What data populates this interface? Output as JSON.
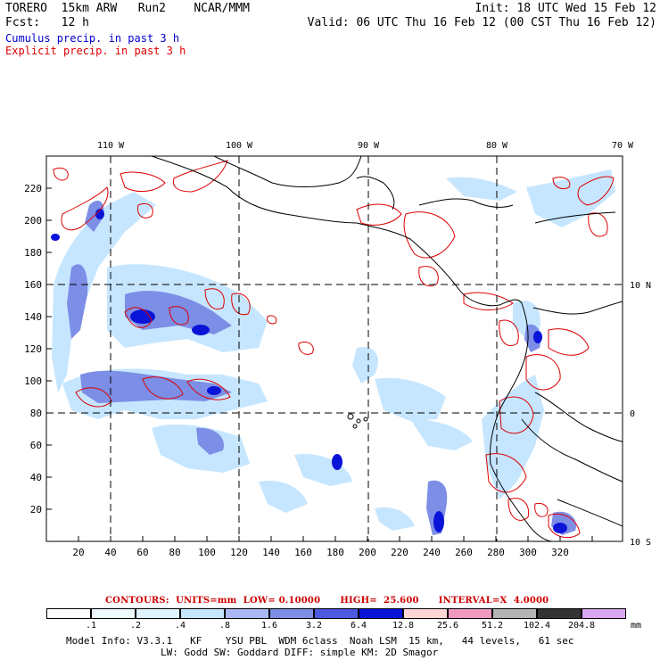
{
  "header": {
    "model": "TORERO  15km ARW   Run2    NCAR/MMM",
    "init": "Init: 18 UTC Wed 15 Feb 12",
    "fcst": "Fcst:   12 h",
    "valid": "Valid: 06 UTC Thu 16 Feb 12 (00 CST Thu 16 Feb 12)",
    "cumulus_label": "Cumulus precip. in past 3 h",
    "explicit_label": "Explicit precip. in past 3 h",
    "cumulus_color": "#0000cc",
    "explicit_color": "#dd0000"
  },
  "axes": {
    "x_ticks": [
      "20",
      "40",
      "60",
      "80",
      "100",
      "120",
      "140",
      "160",
      "180",
      "200",
      "220",
      "240",
      "260",
      "280",
      "300",
      "320"
    ],
    "y_ticks": [
      "20",
      "40",
      "60",
      "80",
      "100",
      "120",
      "140",
      "160",
      "180",
      "200",
      "220"
    ],
    "lon_labels": [
      "110 W",
      "100 W",
      "90 W",
      "80 W",
      "70 W"
    ],
    "lat_labels": [
      "10 N",
      "0",
      "10 S"
    ]
  },
  "legend": {
    "contours_text": "CONTOURS:  UNITS=mm  LOW= 0.10000      HIGH=  25.600      INTERVAL=X  4.0000",
    "colors": [
      "#ffffff",
      "#eefcff",
      "#e0f4ff",
      "#c6e6ff",
      "#aab9f4",
      "#7d8ee6",
      "#4d5ae0",
      "#0a14d8",
      "#ffd6d6",
      "#f099c0",
      "#b4b4b4",
      "#333333",
      "#d9a6f0"
    ],
    "labels": [
      ".1",
      ".2",
      ".4",
      ".8",
      "1.6",
      "3.2",
      "6.4",
      "12.8",
      "25.6",
      "51.2",
      "102.4",
      "204.8"
    ],
    "unit": "mm"
  },
  "model_info": {
    "line1": "Model Info: V3.3.1   KF    YSU PBL  WDM 6class  Noah LSM  15 km,   44 levels,   61 sec",
    "line2": "                LW: Godd SW: Goddard DIFF: simple KM: 2D Smagor"
  }
}
